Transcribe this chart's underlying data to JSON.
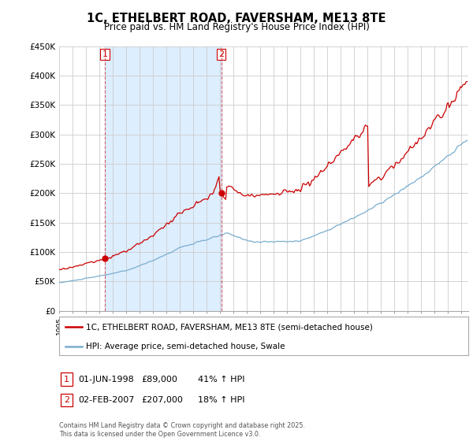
{
  "title": "1C, ETHELBERT ROAD, FAVERSHAM, ME13 8TE",
  "subtitle": "Price paid vs. HM Land Registry's House Price Index (HPI)",
  "legend_line1": "1C, ETHELBERT ROAD, FAVERSHAM, ME13 8TE (semi-detached house)",
  "legend_line2": "HPI: Average price, semi-detached house, Swale",
  "sale1_label": "1",
  "sale1_date": "01-JUN-1998",
  "sale1_price": "£89,000",
  "sale1_hpi": "41% ↑ HPI",
  "sale2_label": "2",
  "sale2_date": "02-FEB-2007",
  "sale2_price": "£207,000",
  "sale2_hpi": "18% ↑ HPI",
  "footer": "Contains HM Land Registry data © Crown copyright and database right 2025.\nThis data is licensed under the Open Government Licence v3.0.",
  "line_color_red": "#cc0000",
  "line_color_blue": "#7aadcf",
  "vline_color": "#cc0000",
  "grid_color": "#cccccc",
  "bg_color": "#ffffff",
  "shade_color": "#ddeeff",
  "sale1_x": 1998.42,
  "sale2_x": 2007.08,
  "ylim": [
    0,
    450000
  ],
  "xlim_start": 1995.0,
  "xlim_end": 2025.5
}
